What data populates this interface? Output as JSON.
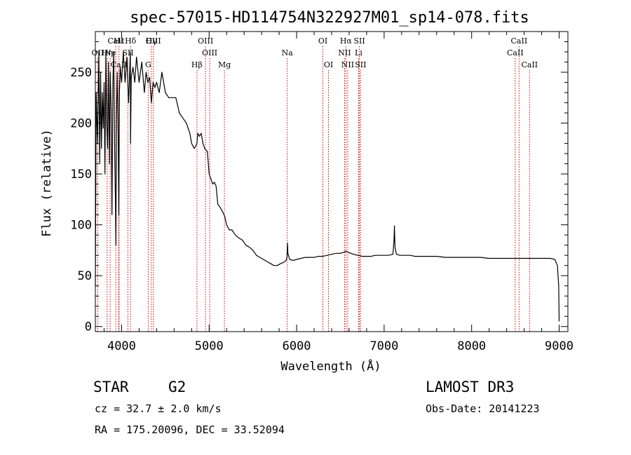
{
  "chart_data": {
    "type": "line",
    "title": "spec-57015-HD114754N322927M01_sp14-078.fits",
    "xlabel": "Wavelength (Å)",
    "ylabel": "Flux (relative)",
    "xlim": [
      3700,
      9100
    ],
    "ylim": [
      -5,
      290
    ],
    "xticks": [
      4000,
      5000,
      6000,
      7000,
      8000,
      9000
    ],
    "yticks": [
      0,
      50,
      100,
      150,
      200,
      250
    ],
    "series": [
      {
        "name": "spectrum",
        "x": [
          3700,
          3710,
          3725,
          3740,
          3750,
          3760,
          3770,
          3780,
          3790,
          3800,
          3810,
          3820,
          3830,
          3840,
          3850,
          3860,
          3870,
          3880,
          3890,
          3900,
          3910,
          3920,
          3930,
          3935,
          3940,
          3950,
          3960,
          3968,
          3975,
          3985,
          4000,
          4020,
          4040,
          4060,
          4080,
          4100,
          4102,
          4110,
          4130,
          4150,
          4170,
          4200,
          4230,
          4260,
          4280,
          4300,
          4320,
          4340,
          4360,
          4380,
          4400,
          4430,
          4460,
          4500,
          4540,
          4580,
          4620,
          4660,
          4700,
          4740,
          4780,
          4800,
          4830,
          4850,
          4861,
          4870,
          4890,
          4910,
          4930,
          4950,
          4980,
          5000,
          5020,
          5040,
          5060,
          5080,
          5100,
          5120,
          5140,
          5160,
          5180,
          5200,
          5230,
          5260,
          5300,
          5340,
          5380,
          5420,
          5460,
          5500,
          5540,
          5580,
          5620,
          5660,
          5700,
          5740,
          5780,
          5820,
          5850,
          5880,
          5890,
          5896,
          5900,
          5920,
          5960,
          6000,
          6050,
          6100,
          6150,
          6200,
          6250,
          6300,
          6350,
          6400,
          6450,
          6500,
          6540,
          6563,
          6590,
          6620,
          6650,
          6700,
          6750,
          6800,
          6850,
          6900,
          6950,
          7000,
          7050,
          7100,
          7112,
          7118,
          7124,
          7140,
          7180,
          7250,
          7300,
          7350,
          7400,
          7500,
          7600,
          7700,
          7800,
          7900,
          8000,
          8100,
          8200,
          8300,
          8400,
          8500,
          8600,
          8700,
          8800,
          8900,
          8950,
          8980,
          8995,
          9000
        ],
        "y": [
          40,
          230,
          180,
          270,
          160,
          250,
          175,
          230,
          195,
          240,
          150,
          270,
          200,
          175,
          260,
          160,
          250,
          215,
          110,
          240,
          270,
          175,
          120,
          80,
          200,
          250,
          190,
          110,
          230,
          255,
          240,
          270,
          240,
          265,
          220,
          270,
          180,
          245,
          255,
          240,
          265,
          240,
          260,
          230,
          250,
          240,
          245,
          220,
          240,
          235,
          240,
          230,
          250,
          230,
          225,
          225,
          225,
          210,
          205,
          200,
          190,
          180,
          175,
          178,
          180,
          190,
          187,
          190,
          180,
          175,
          172,
          150,
          145,
          140,
          142,
          138,
          120,
          118,
          115,
          112,
          108,
          100,
          95,
          95,
          90,
          87,
          85,
          80,
          78,
          75,
          70,
          68,
          66,
          64,
          62,
          60,
          60,
          62,
          63,
          65,
          68,
          82,
          72,
          66,
          65,
          66,
          67,
          68,
          68,
          68,
          69,
          69,
          70,
          71,
          72,
          72,
          73,
          74,
          73,
          72,
          71,
          70,
          69,
          69,
          69,
          70,
          70,
          70,
          70,
          71,
          84,
          99,
          78,
          71,
          70,
          70,
          70,
          69,
          69,
          69,
          69,
          68,
          68,
          68,
          68,
          68,
          67,
          67,
          67,
          67,
          67,
          67,
          67,
          67,
          66,
          60,
          40,
          5
        ]
      }
    ],
    "lines": [
      {
        "name": "Hε",
        "x": 3970,
        "row": 1,
        "color": "#cc0000"
      },
      {
        "name": "Hδ",
        "x": 4102,
        "row": 1,
        "color": "#cc0000"
      },
      {
        "name": "CaII",
        "x": 3934,
        "row": 1,
        "color": "#cc0000"
      },
      {
        "name": "OII",
        "x": 3727,
        "row": 2,
        "color": "#cc0000"
      },
      {
        "name": "Hη",
        "x": 3835,
        "row": 2,
        "color": "#cc0000"
      },
      {
        "name": "Ne",
        "x": 3869,
        "row": 2,
        "color": "#cc0000"
      },
      {
        "name": "SII",
        "x": 4072,
        "row": 2,
        "color": "#cc0000"
      },
      {
        "name": "CaII",
        "x": 3969,
        "row": 3,
        "color": "#cc0000"
      },
      {
        "name": "Hγ",
        "x": 4340,
        "row": 1,
        "color": "#cc0000"
      },
      {
        "name": "OIII",
        "x": 4363,
        "row": 1,
        "color": "#cc0000"
      },
      {
        "name": "G",
        "x": 4304,
        "row": 3,
        "color": "#cc0000"
      },
      {
        "name": "OIII",
        "x": 4959,
        "row": 1,
        "color": "#cc0000"
      },
      {
        "name": "OIII",
        "x": 5007,
        "row": 2,
        "color": "#cc0000"
      },
      {
        "name": "Hβ",
        "x": 4861,
        "row": 3,
        "color": "#cc0000"
      },
      {
        "name": "Mg",
        "x": 5175,
        "row": 3,
        "color": "#cc0000"
      },
      {
        "name": "Na",
        "x": 5893,
        "row": 2,
        "color": "#cc0000"
      },
      {
        "name": "OI",
        "x": 6300,
        "row": 1,
        "color": "#cc0000"
      },
      {
        "name": "OI",
        "x": 6364,
        "row": 3,
        "color": "#cc0000"
      },
      {
        "name": "Hα",
        "x": 6563,
        "row": 1,
        "color": "#cc0000"
      },
      {
        "name": "SII",
        "x": 6717,
        "row": 1,
        "color": "#cc0000"
      },
      {
        "name": "NII",
        "x": 6548,
        "row": 2,
        "color": "#cc0000"
      },
      {
        "name": "Li",
        "x": 6708,
        "row": 2,
        "color": "#cc0000"
      },
      {
        "name": "NII",
        "x": 6584,
        "row": 3,
        "color": "#cc0000"
      },
      {
        "name": "SII",
        "x": 6731,
        "row": 3,
        "color": "#cc0000"
      },
      {
        "name": "CaII",
        "x": 8542,
        "row": 1,
        "color": "#cc0000"
      },
      {
        "name": "CaII",
        "x": 8498,
        "row": 2,
        "color": "#cc0000"
      },
      {
        "name": "CaII",
        "x": 8662,
        "row": 3,
        "color": "#cc0000"
      }
    ]
  },
  "info": {
    "class": "STAR",
    "subclass": "G2",
    "survey": "LAMOST DR3",
    "cz": "cz = 32.7 ± 2.0 km/s",
    "obs_date": "Obs-Date: 20141223",
    "coords": "RA = 175.20096, DEC =  33.52094"
  }
}
